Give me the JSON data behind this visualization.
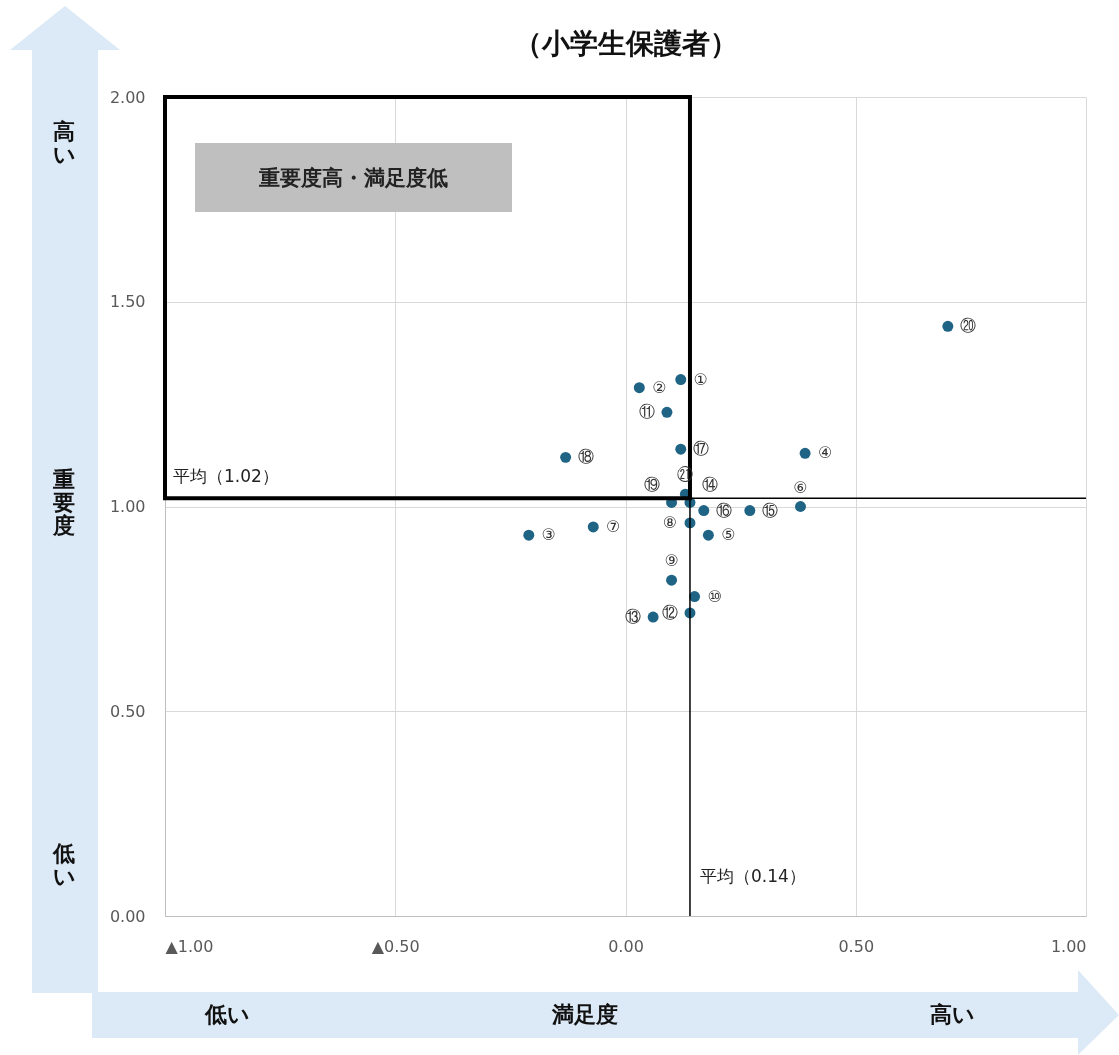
{
  "chart_data": {
    "type": "scatter",
    "title": "（小学生保護者）",
    "xlabel": "満足度",
    "ylabel": "重要度",
    "x": [
      0.12,
      0.03,
      -0.21,
      0.39,
      0.18,
      0.38,
      -0.07,
      0.14,
      0.1,
      0.15,
      0.09,
      0.14,
      0.06,
      0.14,
      0.27,
      0.17,
      0.12,
      -0.13,
      0.1,
      0.7,
      0.13
    ],
    "values": [
      1.31,
      1.29,
      0.93,
      1.13,
      0.93,
      1.0,
      0.95,
      0.96,
      0.82,
      0.78,
      1.23,
      0.74,
      0.73,
      1.01,
      0.99,
      0.99,
      1.14,
      1.12,
      1.01,
      1.44,
      1.03
    ],
    "value_labels": [
      "①",
      "②",
      "③",
      "④",
      "⑤",
      "⑥",
      "⑦",
      "⑧",
      "⑨",
      "⑩",
      "⑪",
      "⑫",
      "⑬",
      "⑭",
      "⑮",
      "⑯",
      "⑰",
      "⑱",
      "⑲",
      "⑳",
      "㉑"
    ],
    "color": "#1f6385",
    "marker": "circle",
    "xlim": [
      -1,
      1
    ],
    "xticks": [
      {
        "value": -1,
        "label": "▲1.00"
      },
      {
        "value": -0.5,
        "label": "▲0.50"
      },
      {
        "value": 0,
        "label": "0.00"
      },
      {
        "value": 0.5,
        "label": "0.50"
      },
      {
        "value": 1,
        "label": "1.00"
      }
    ],
    "ylim": [
      0,
      2
    ],
    "yticks": [
      {
        "value": 0,
        "label": "0.00"
      },
      {
        "value": 0.5,
        "label": "0.50"
      },
      {
        "value": 1,
        "label": "1.00"
      },
      {
        "value": 1.5,
        "label": "1.50"
      },
      {
        "value": 2,
        "label": "2.00"
      }
    ],
    "grid": true,
    "ref_lines": [
      {
        "axis": "y",
        "value": 1.02,
        "label": "平均（1.02）"
      },
      {
        "axis": "x",
        "value": 0.14,
        "label": "平均（0.14）"
      }
    ],
    "annotations": [
      "高い",
      "低い",
      "低い",
      "高い",
      "重要度高・満足度低"
    ]
  }
}
